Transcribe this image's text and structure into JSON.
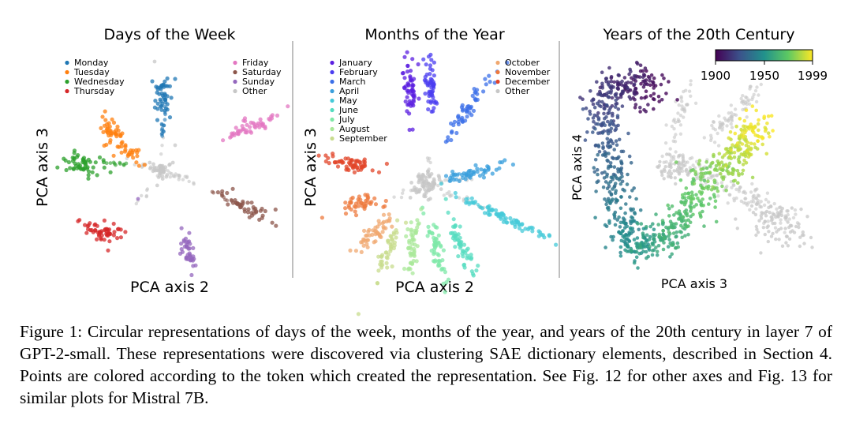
{
  "chart_data": [
    {
      "type": "scatter",
      "title": "Days of the Week",
      "xlabel": "PCA axis 2",
      "ylabel": "PCA axis 3",
      "legend_placement": "top-left and top-right",
      "grid": false,
      "series": [
        {
          "name": "Monday",
          "color": "#1f77b4",
          "center": [
            0.05,
            0.95
          ]
        },
        {
          "name": "Tuesday",
          "color": "#ff7f0e",
          "center": [
            -0.55,
            0.45
          ]
        },
        {
          "name": "Wednesday",
          "color": "#2ca02c",
          "center": [
            -1.0,
            0.0
          ]
        },
        {
          "name": "Thursday",
          "color": "#d62728",
          "center": [
            -0.75,
            -0.95
          ]
        },
        {
          "name": "Friday",
          "color": "#e377c2",
          "center": [
            1.0,
            0.6
          ]
        },
        {
          "name": "Saturday",
          "color": "#8c564b",
          "center": [
            1.1,
            -0.5
          ]
        },
        {
          "name": "Sunday",
          "color": "#9467bd",
          "center": [
            0.25,
            -1.15
          ]
        },
        {
          "name": "Other",
          "color": "#c7c7c7",
          "center": [
            0.0,
            0.0
          ]
        }
      ]
    },
    {
      "type": "scatter",
      "title": "Months of the Year",
      "xlabel": "PCA axis 2",
      "ylabel": "PCA axis 3",
      "legend_placement": "top-left and top-right",
      "grid": false,
      "series": [
        {
          "name": "January",
          "color": "#5b1fe0"
        },
        {
          "name": "February",
          "color": "#4b3df0"
        },
        {
          "name": "March",
          "color": "#3b6fe8"
        },
        {
          "name": "April",
          "color": "#3a9fdc"
        },
        {
          "name": "May",
          "color": "#45c9d8"
        },
        {
          "name": "June",
          "color": "#55dcc0"
        },
        {
          "name": "July",
          "color": "#7fe8a8"
        },
        {
          "name": "August",
          "color": "#a9e89a"
        },
        {
          "name": "September",
          "color": "#c8dc8e"
        },
        {
          "name": "October",
          "color": "#f0a870"
        },
        {
          "name": "November",
          "color": "#ee7a3e"
        },
        {
          "name": "December",
          "color": "#e2452a"
        },
        {
          "name": "Other",
          "color": "#c7c7c7"
        }
      ]
    },
    {
      "type": "scatter",
      "title": "Years of the 20th Century",
      "xlabel": "PCA axis 3",
      "ylabel": "PCA axis 4",
      "colorbar": {
        "colormap": "viridis",
        "min": 1900,
        "max": 1999,
        "ticks": [
          "1900",
          "1950",
          "1999"
        ]
      },
      "other_color": "#c7c7c7",
      "grid": false
    }
  ],
  "caption": "Figure 1: Circular representations of days of the week, months of the year, and years of the 20th century in layer 7 of GPT-2-small. These representations were discovered via clustering SAE dictionary elements, described in Section 4. Points are colored according to the token which created the representation. See Fig. 12 for other axes and Fig. 13 for similar plots for Mistral 7B."
}
